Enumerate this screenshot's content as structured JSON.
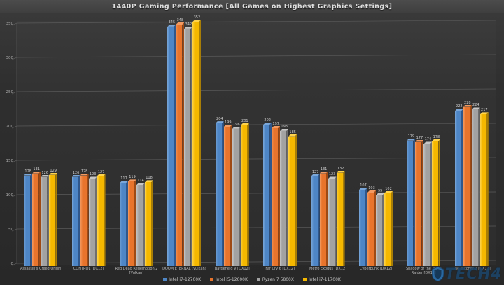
{
  "header": {
    "title": "1440P Gaming Performance [All Games on Highest Graphics Settings]"
  },
  "watermark": {
    "text": "TECH4",
    "logo": "shield-icon",
    "color": "#1c4468",
    "shield_color": "#2b6fae"
  },
  "colors": {
    "background": "#2f2f2f",
    "header_band": "#464646",
    "gridline": "#5a5a5a",
    "tick_text": "#a9a9a9",
    "value_label_text": "#cfcfcf",
    "category_text": "#b8b8b8",
    "series_blue": "#4e86c6",
    "series_orange": "#e8742c",
    "series_gray": "#a2a2a2",
    "series_yellow": "#f5b800"
  },
  "chart_data": {
    "type": "bar",
    "title": "1440P Gaming Performance [All Games on Highest Graphics Settings]",
    "xlabel": "",
    "ylabel": "",
    "ylim": [
      0,
      350
    ],
    "yticks": [
      0,
      50,
      100,
      150,
      200,
      250,
      300,
      350
    ],
    "grid": true,
    "grid_style": "3d-slanted",
    "legend_position": "bottom",
    "categories": [
      "Assassin's Creed Origin",
      "CONTROL [DX12]",
      "Red Dead Redemption 2 [Vulkan]",
      "DOOM ETERNAL (Vulkan)",
      "Battlefield V [DX12]",
      "Far Cry 6 [DX12]",
      "Metro Exodus [DX12]",
      "Cyberpunk [DX12]",
      "Shadow of the Tomb Raider [DX12]",
      "The Witcher 3 [DX11]"
    ],
    "series": [
      {
        "name": "Intel i7-12700K",
        "color": "#4e86c6",
        "color_light": "#7aa7d9",
        "color_dark": "#30578b",
        "values": [
          128,
          126,
          117,
          345,
          204,
          202,
          127,
          107,
          179,
          222
        ]
      },
      {
        "name": "Intel i5-12600K",
        "color": "#e8742c",
        "color_light": "#f39a61",
        "color_dark": "#9e4a15",
        "values": [
          131,
          128,
          119,
          348,
          199,
          197,
          131,
          103,
          177,
          228
        ]
      },
      {
        "name": "Ryzen 7 5800X",
        "color": "#a2a2a2",
        "color_light": "#c6c6c6",
        "color_dark": "#6e6e6e",
        "values": [
          126,
          123,
          114,
          342,
          196,
          193,
          123,
          99,
          174,
          224
        ]
      },
      {
        "name": "Intel i7-11700K",
        "color": "#f5b800",
        "color_light": "#ffd44d",
        "color_dark": "#a87e06",
        "values": [
          129,
          127,
          118,
          352,
          201,
          185,
          132,
          102,
          178,
          217
        ]
      }
    ]
  }
}
